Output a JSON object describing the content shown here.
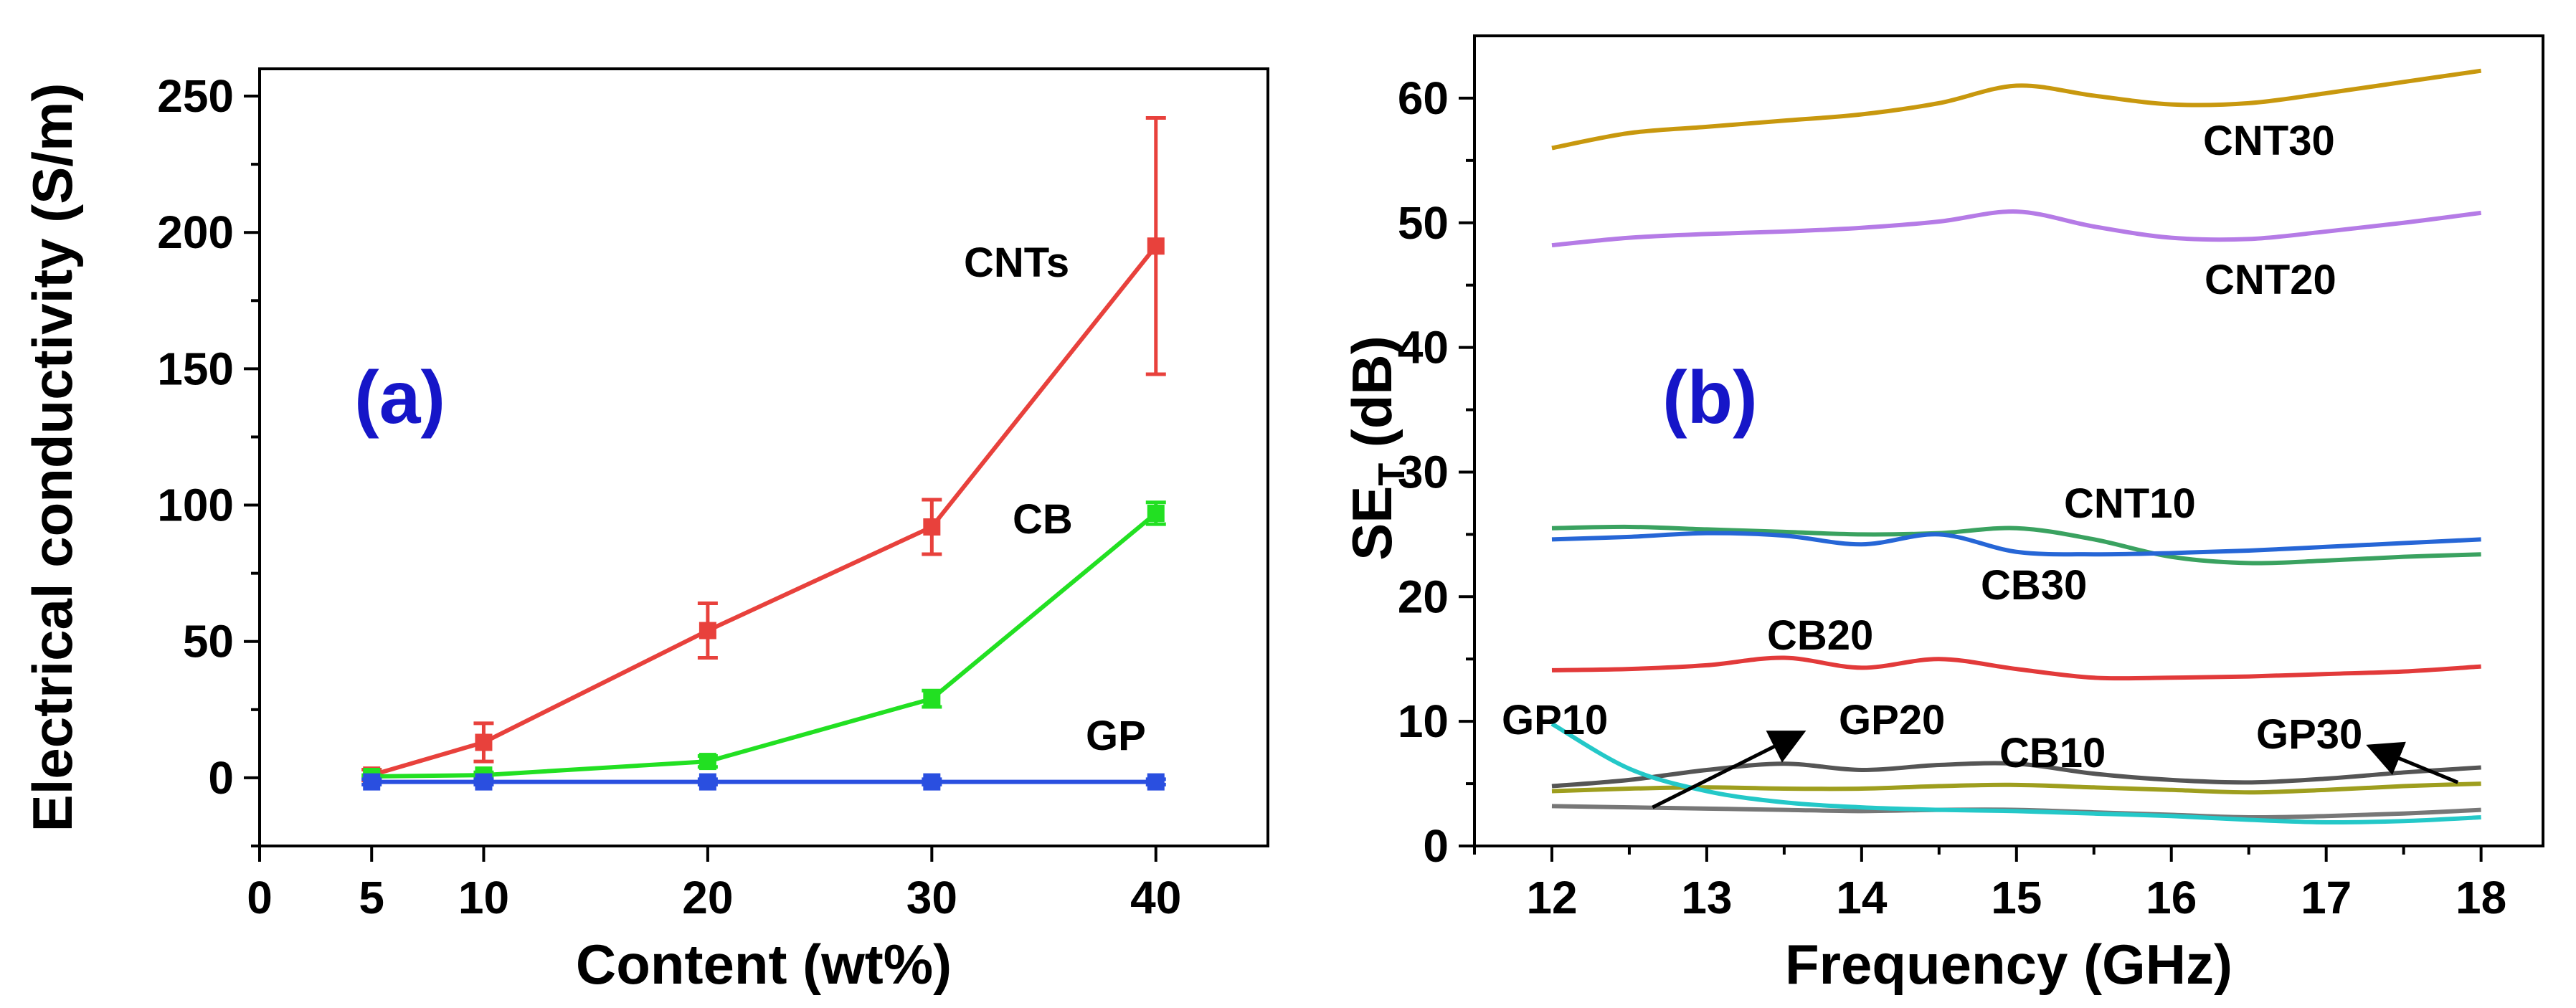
{
  "chart_data": [
    {
      "type": "line",
      "panel": "(a)",
      "xlabel": "Content (wt%)",
      "ylabel": "Electrical conductivity (S/m)",
      "xlim": [
        0,
        45
      ],
      "ylim": [
        -25,
        260
      ],
      "xticks": [
        0,
        5,
        10,
        20,
        30,
        40
      ],
      "yticks": [
        0,
        50,
        100,
        150,
        200,
        250
      ],
      "x": [
        5,
        10,
        20,
        30,
        40
      ],
      "series": [
        {
          "name": "CNTs",
          "color": "#e8413c",
          "values": [
            1,
            13,
            54,
            92,
            195
          ],
          "errors": [
            2,
            7,
            10,
            10,
            47
          ]
        },
        {
          "name": "CB",
          "color": "#22e022",
          "values": [
            0.5,
            1,
            6,
            29,
            97
          ],
          "errors": [
            0.5,
            1,
            2,
            3,
            4
          ]
        },
        {
          "name": "GP",
          "color": "#2a4fe0",
          "values": [
            -1.5,
            -1.5,
            -1.5,
            -1.5,
            -1.5
          ],
          "errors": [
            1,
            1,
            1,
            1,
            1
          ]
        }
      ]
    },
    {
      "type": "line",
      "panel": "(b)",
      "xlabel": "Frequency (GHz)",
      "ylabel": "SE",
      "ylabel_sub": "T",
      "ylabel_suffix": " (dB)",
      "xlim": [
        11.5,
        18.4
      ],
      "ylim": [
        0,
        65
      ],
      "xticks": [
        12,
        13,
        14,
        15,
        16,
        17,
        18
      ],
      "yticks": [
        0,
        10,
        20,
        30,
        40,
        50,
        60
      ],
      "x": [
        12,
        12.5,
        13,
        13.5,
        14,
        14.5,
        15,
        15.5,
        16,
        16.5,
        17,
        17.5,
        18
      ],
      "series": [
        {
          "name": "CNT30",
          "color": "#c8980e",
          "values": [
            56,
            57.2,
            57.7,
            58.2,
            58.7,
            59.6,
            61,
            60.2,
            59.5,
            59.6,
            60.4,
            61.3,
            62.2
          ]
        },
        {
          "name": "CNT20",
          "color": "#b57be6",
          "values": [
            48.2,
            48.8,
            49.1,
            49.3,
            49.6,
            50.1,
            50.9,
            49.7,
            48.8,
            48.7,
            49.3,
            50,
            50.8
          ]
        },
        {
          "name": "CNT10",
          "color": "#3aa260",
          "values": [
            25.5,
            25.6,
            25.4,
            25.2,
            25,
            25.1,
            25.5,
            24.6,
            23.2,
            22.7,
            22.9,
            23.2,
            23.4
          ]
        },
        {
          "name": "CB30",
          "color": "#2666d6",
          "values": [
            24.6,
            24.8,
            25.1,
            24.9,
            24.2,
            25,
            23.6,
            23.4,
            23.5,
            23.7,
            24,
            24.3,
            24.6
          ]
        },
        {
          "name": "CB20",
          "color": "#e23a3a",
          "values": [
            14.1,
            14.2,
            14.5,
            15.1,
            14.3,
            15,
            14.2,
            13.5,
            13.5,
            13.6,
            13.8,
            14,
            14.4
          ]
        },
        {
          "name": "CB10",
          "color": "#555555",
          "values": [
            4.8,
            5.3,
            6.1,
            6.6,
            6.1,
            6.5,
            6.6,
            5.8,
            5.3,
            5.1,
            5.4,
            5.9,
            6.3
          ]
        },
        {
          "name": "GP30",
          "color": "#9e9e1e",
          "values": [
            4.4,
            4.6,
            4.7,
            4.6,
            4.6,
            4.8,
            4.9,
            4.7,
            4.5,
            4.3,
            4.5,
            4.8,
            5
          ]
        },
        {
          "name": "GP20",
          "color": "#777777",
          "values": [
            3.2,
            3.1,
            3,
            2.9,
            2.8,
            2.9,
            2.9,
            2.7,
            2.5,
            2.3,
            2.4,
            2.6,
            2.9
          ]
        },
        {
          "name": "GP10",
          "color": "#24c8c8",
          "values": [
            9.8,
            6.2,
            4.4,
            3.5,
            3.1,
            2.9,
            2.8,
            2.6,
            2.4,
            2.1,
            1.9,
            2,
            2.3
          ]
        }
      ]
    }
  ]
}
